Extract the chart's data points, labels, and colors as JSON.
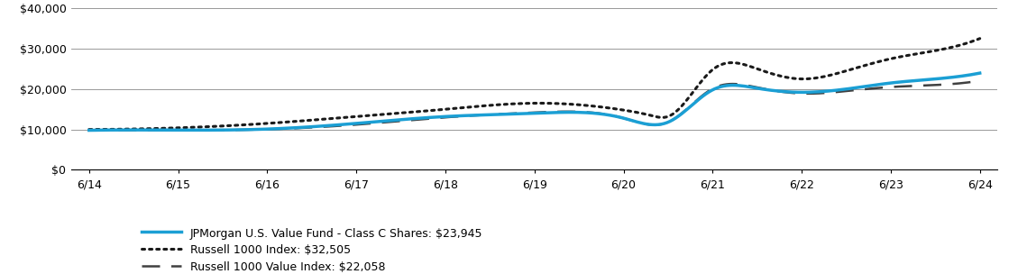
{
  "x_labels": [
    "6/14",
    "6/15",
    "6/16",
    "6/17",
    "6/18",
    "6/19",
    "6/20",
    "6/21",
    "6/22",
    "6/23",
    "6/24"
  ],
  "x_ticks": [
    0,
    1,
    2,
    3,
    4,
    5,
    6,
    7,
    8,
    9,
    10
  ],
  "fund_keypoints_x": [
    0,
    1,
    2,
    3,
    4,
    5,
    6,
    6.5,
    7,
    7.5,
    8,
    8.5,
    9,
    9.5,
    10
  ],
  "fund_keypoints_y": [
    9800,
    9850,
    10100,
    11500,
    13200,
    14000,
    12800,
    11800,
    19800,
    20200,
    19200,
    20000,
    21500,
    22500,
    23945
  ],
  "r1000_keypoints_x": [
    0,
    1,
    2,
    3,
    4,
    5,
    6,
    6.3,
    6.5,
    7,
    7.5,
    8,
    8.5,
    9,
    9.5,
    10
  ],
  "r1000_keypoints_y": [
    10000,
    10400,
    11500,
    13200,
    15000,
    16500,
    14800,
    13500,
    13200,
    24800,
    25000,
    22500,
    24500,
    27500,
    29500,
    32505
  ],
  "r1000v_keypoints_x": [
    0,
    1,
    2,
    3,
    4,
    5,
    6,
    6.5,
    7,
    7.5,
    8,
    8.5,
    9,
    9.5,
    10
  ],
  "r1000v_keypoints_y": [
    9800,
    9820,
    10050,
    11200,
    13000,
    14200,
    12800,
    11800,
    20100,
    20400,
    18900,
    19500,
    20500,
    21000,
    22058
  ],
  "fund_color": "#1B9FD4",
  "russell1000_color": "#1a1a1a",
  "russell1000value_color": "#404040",
  "ylim": [
    0,
    40000
  ],
  "yticks": [
    0,
    10000,
    20000,
    30000,
    40000
  ],
  "ytick_labels": [
    "$0",
    "$10,000",
    "$20,000",
    "$30,000",
    "$40,000"
  ],
  "legend_labels": [
    "JPMorgan U.S. Value Fund - Class C Shares: $23,945",
    "Russell 1000 Index: $32,505",
    "Russell 1000 Value Index: $22,058"
  ],
  "background_color": "#ffffff",
  "grid_color": "#888888",
  "fund_linewidth": 2.5,
  "russell1000value_dashwidth": 1.8,
  "legend_fontsize": 9,
  "tick_fontsize": 9,
  "n_interp": 300
}
